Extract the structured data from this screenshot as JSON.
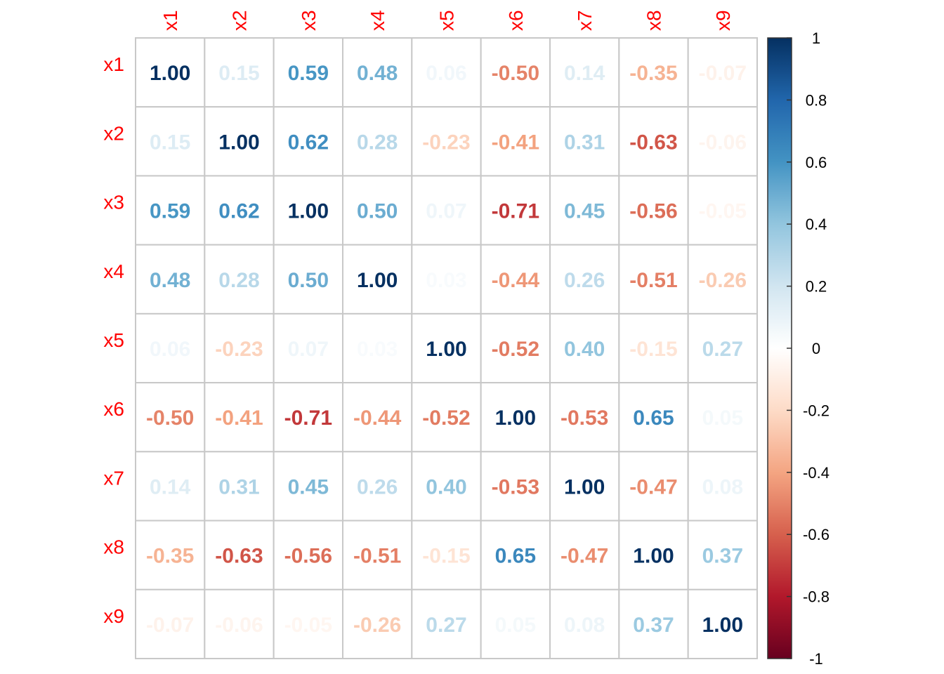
{
  "chart_data": {
    "type": "heatmap",
    "variables": [
      "x1",
      "x2",
      "x3",
      "x4",
      "x5",
      "x6",
      "x7",
      "x8",
      "x9"
    ],
    "matrix": [
      [
        1.0,
        0.15,
        0.59,
        0.48,
        0.06,
        -0.5,
        0.14,
        -0.35,
        -0.07
      ],
      [
        0.15,
        1.0,
        0.62,
        0.28,
        -0.23,
        -0.41,
        0.31,
        -0.63,
        -0.06
      ],
      [
        0.59,
        0.62,
        1.0,
        0.5,
        0.07,
        -0.71,
        0.45,
        -0.56,
        -0.05
      ],
      [
        0.48,
        0.28,
        0.5,
        1.0,
        0.03,
        -0.44,
        0.26,
        -0.51,
        -0.26
      ],
      [
        0.06,
        -0.23,
        0.07,
        0.03,
        1.0,
        -0.52,
        0.4,
        -0.15,
        0.27
      ],
      [
        -0.5,
        -0.41,
        -0.71,
        -0.44,
        -0.52,
        1.0,
        -0.53,
        0.65,
        0.05
      ],
      [
        0.14,
        0.31,
        0.45,
        0.26,
        0.4,
        -0.53,
        1.0,
        -0.47,
        0.08
      ],
      [
        -0.35,
        -0.63,
        -0.56,
        -0.51,
        -0.15,
        0.65,
        -0.47,
        1.0,
        0.37
      ],
      [
        -0.07,
        -0.06,
        -0.05,
        -0.26,
        0.27,
        0.05,
        0.08,
        0.37,
        1.0
      ]
    ],
    "colorbar": {
      "range": [
        -1,
        1
      ],
      "ticks": [
        "1",
        "0.8",
        "0.6",
        "0.4",
        "0.2",
        "0",
        "-0.2",
        "-0.4",
        "-0.6",
        "-0.8",
        "-1"
      ],
      "palette": [
        "#67001F",
        "#B2182B",
        "#D6604D",
        "#F4A582",
        "#FDDBC7",
        "#FFFFFF",
        "#D1E5F0",
        "#92C5DE",
        "#4393C3",
        "#2166AC",
        "#053061"
      ]
    },
    "label_color": "#FF0000",
    "grid": true,
    "legend": "right"
  }
}
